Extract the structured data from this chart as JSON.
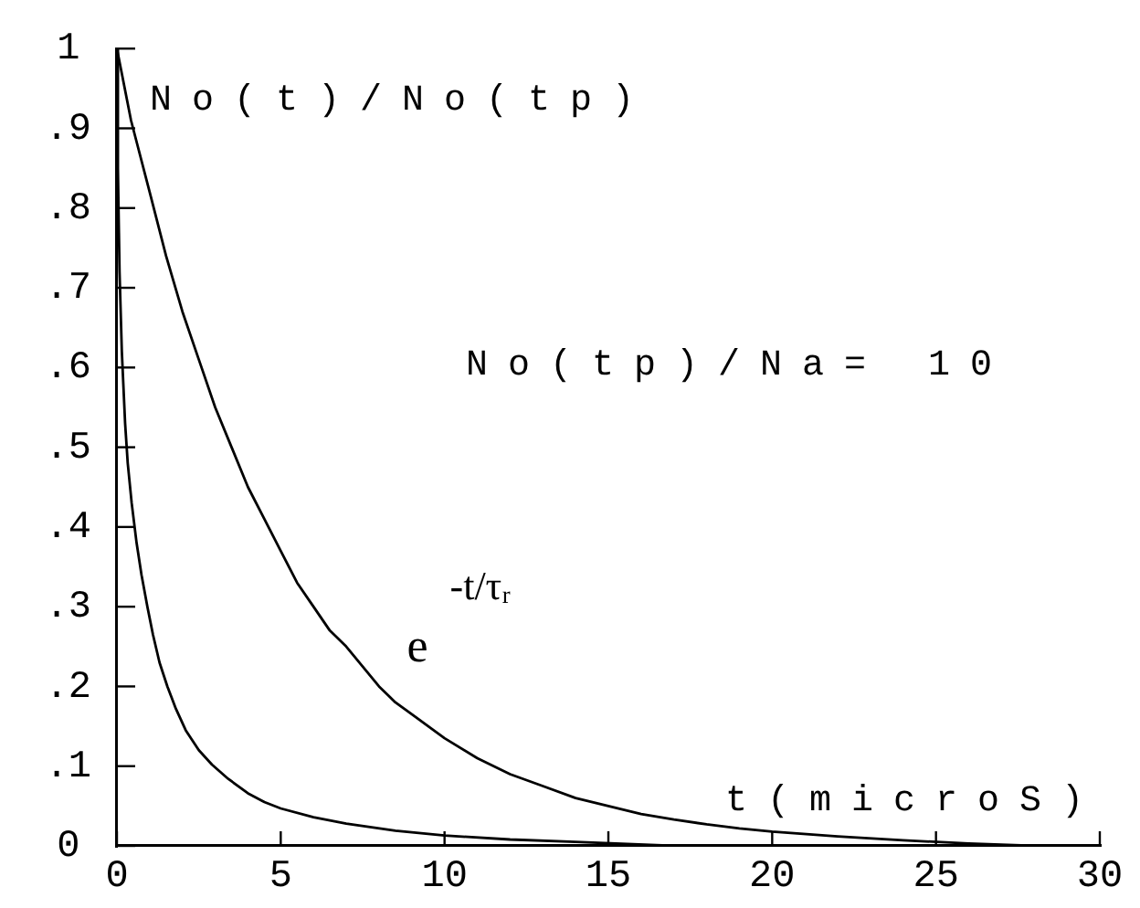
{
  "chart_data": {
    "type": "line",
    "xlabel": "t(microS)",
    "ylabel": "No(t)/No(tp)",
    "annotations": [
      "No(tp)/Na= 10"
    ],
    "xlim": [
      0,
      30
    ],
    "xticks": [
      0,
      5,
      10,
      15,
      20,
      25,
      30
    ],
    "ylim": [
      0,
      1
    ],
    "yticks": [
      0,
      {
        "value": 0.1,
        "label": ".1"
      },
      {
        "value": 0.2,
        "label": ".2"
      },
      {
        "value": 0.3,
        "label": ".3"
      },
      {
        "value": 0.4,
        "label": ".4"
      },
      {
        "value": 0.5,
        "label": ".5"
      },
      {
        "value": 0.6,
        "label": ".6"
      },
      {
        "value": 0.7,
        "label": ".7"
      },
      {
        "value": 0.8,
        "label": ".8"
      },
      {
        "value": 0.9,
        "label": ".9"
      },
      1
    ],
    "series": [
      {
        "name": "e$^{-t/τᵣ}$",
        "color": "#000000",
        "x": [
          0,
          0.43,
          1,
          1.5,
          2,
          2.5,
          3,
          3.5,
          4,
          4.5,
          5,
          5.5,
          6,
          6.5,
          7,
          7.5,
          8,
          8.5,
          9,
          10,
          11,
          12,
          13,
          14,
          15,
          16,
          17,
          18,
          19,
          20,
          22,
          24,
          26,
          28
        ],
        "values": [
          1,
          0.91,
          0.82,
          0.74,
          0.67,
          0.61,
          0.55,
          0.5,
          0.45,
          0.41,
          0.37,
          0.33,
          0.3,
          0.27,
          0.25,
          0.225,
          0.2,
          0.18,
          0.165,
          0.135,
          0.11,
          0.09,
          0.075,
          0.06,
          0.05,
          0.04,
          0.033,
          0.027,
          0.022,
          0.018,
          0.012,
          0.007,
          0.003,
          0
        ]
      },
      {
        "color": "#000000",
        "x": [
          0,
          0.03,
          0.08,
          0.15,
          0.25,
          0.33,
          0.45,
          0.6,
          0.75,
          0.93,
          1.1,
          1.3,
          1.54,
          1.8,
          2.1,
          2.5,
          2.9,
          3.4,
          4,
          4.5,
          5,
          6,
          7,
          8.5,
          10,
          12,
          14,
          17
        ],
        "values": [
          1,
          0.85,
          0.72,
          0.62,
          0.53,
          0.48,
          0.43,
          0.38,
          0.34,
          0.3,
          0.265,
          0.23,
          0.2,
          0.172,
          0.145,
          0.12,
          0.102,
          0.084,
          0.066,
          0.055,
          0.047,
          0.036,
          0.028,
          0.019,
          0.013,
          0.008,
          0.005,
          0
        ]
      }
    ],
    "legend": false,
    "grid": false,
    "line_style": "solid"
  }
}
